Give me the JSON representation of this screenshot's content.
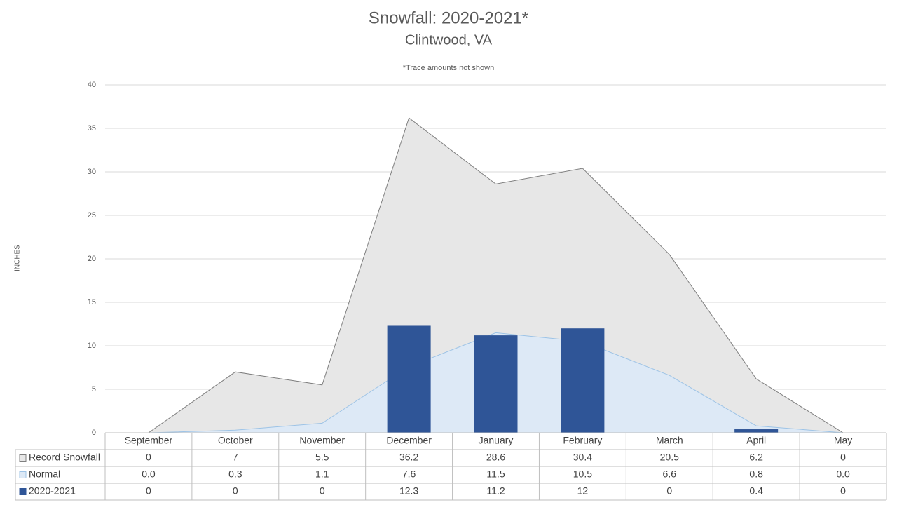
{
  "chart_data": {
    "type": "combo",
    "title": "Snowfall: 2020-2021*",
    "subtitle": "Clintwood, VA",
    "annotation": "*Trace amounts not shown",
    "y_label": "INCHES",
    "categories": [
      "September",
      "October",
      "November",
      "December",
      "January",
      "February",
      "March",
      "April",
      "May"
    ],
    "series": [
      {
        "name": "Record Snowfall",
        "type": "area",
        "color": "#e7e7e7",
        "line_color": "#7f7f7f",
        "values": [
          0,
          7,
          5.5,
          36.2,
          28.6,
          30.4,
          20.5,
          6.2,
          0
        ]
      },
      {
        "name": "Normal",
        "type": "area",
        "color": "#dde9f6",
        "line_color": "#9dc3e6",
        "values": [
          0,
          0.3,
          1.1,
          7.6,
          11.5,
          10.5,
          6.6,
          0.8,
          0
        ],
        "value_labels": [
          "0.0",
          "0.3",
          "1.1",
          "7.6",
          "11.5",
          "10.5",
          "6.6",
          "0.8",
          "0.0"
        ]
      },
      {
        "name": "2020-2021",
        "type": "bar",
        "color": "#2f5597",
        "values": [
          0,
          0,
          0,
          12.3,
          11.2,
          12,
          0,
          0.4,
          0
        ]
      }
    ],
    "ylim": [
      0,
      40
    ],
    "yticks": [
      0,
      5,
      10,
      15,
      20,
      25,
      30,
      35,
      40
    ],
    "grid": true,
    "data_table": true
  }
}
